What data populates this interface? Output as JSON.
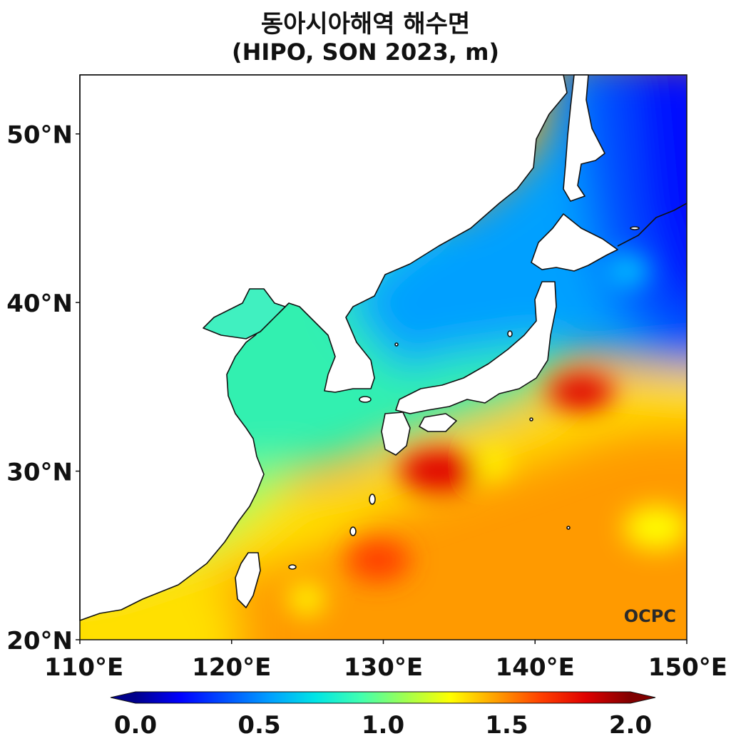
{
  "title": {
    "line1": "동아시아해역 해수면",
    "line2": "(HIPO, SON 2023, m)"
  },
  "map": {
    "lon_range": [
      110,
      150
    ],
    "lat_range": [
      20,
      53.5
    ],
    "lat_ticks": [
      {
        "value": 50,
        "label": "50°N"
      },
      {
        "value": 40,
        "label": "40°N"
      },
      {
        "value": 30,
        "label": "30°N"
      },
      {
        "value": 20,
        "label": "20°N"
      }
    ],
    "lon_ticks": [
      {
        "value": 110,
        "label": "110°E"
      },
      {
        "value": 120,
        "label": "120°E"
      },
      {
        "value": 130,
        "label": "130°E"
      },
      {
        "value": 140,
        "label": "140°E"
      },
      {
        "value": 150,
        "label": "150°E"
      }
    ],
    "watermark": "OCPC"
  },
  "colorbar": {
    "range": [
      0.0,
      2.0
    ],
    "ticks": [
      {
        "value": 0.0,
        "label": "0.0"
      },
      {
        "value": 0.5,
        "label": "0.5"
      },
      {
        "value": 1.0,
        "label": "1.0"
      },
      {
        "value": 1.5,
        "label": "1.5"
      },
      {
        "value": 2.0,
        "label": "2.0"
      }
    ],
    "colors": [
      "#00008b",
      "#0000ff",
      "#0050ff",
      "#00a0ff",
      "#00e5e5",
      "#40ffb0",
      "#a0ff50",
      "#ffff00",
      "#ffa000",
      "#ff4000",
      "#e00000",
      "#800000"
    ]
  }
}
